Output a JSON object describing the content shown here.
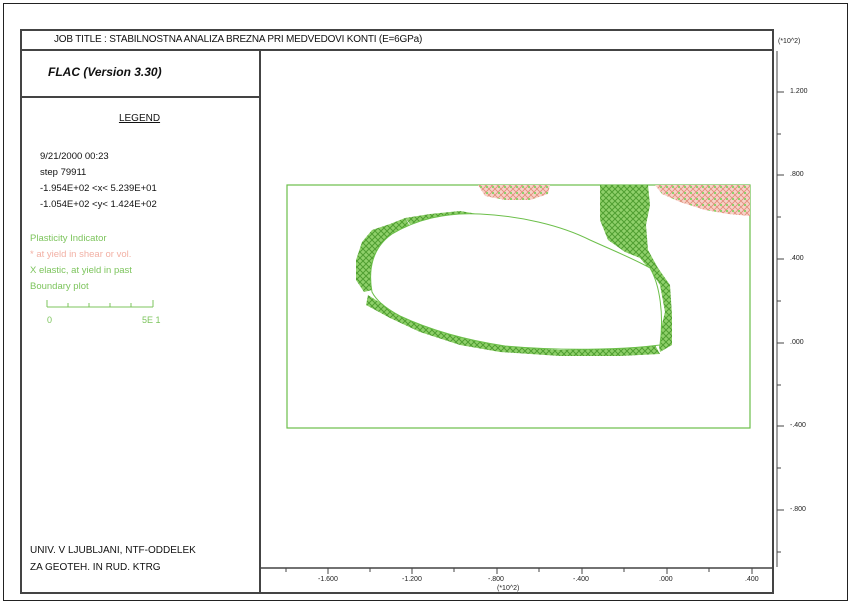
{
  "job_title": "JOB TITLE : STABILNOSTNA ANALIZA BREZNA PRI MEDVEDOVI KONTI (E=6GPa)",
  "program": "FLAC (Version 3.30)",
  "legend": {
    "title": "LEGEND",
    "date": "9/21/2000 00:23",
    "step": "step 79911",
    "x_range": "-1.954E+02 <x< 5.239E+01",
    "y_range": "-1.054E+02 <y< 1.424E+02",
    "items": [
      {
        "label": "Plasticity Indicator",
        "color": "#6cbf4a"
      },
      {
        "label": "* at yield in shear or vol.",
        "color": "#f0a090"
      },
      {
        "label": "X elastic, at yield in past",
        "color": "#6cbf4a"
      },
      {
        "label": "Boundary plot",
        "color": "#6cbf4a"
      }
    ],
    "scale_min": "0",
    "scale_max": "5E 1"
  },
  "organization": [
    "UNIV. V LJUBLJANI, NTF-ODDELEK",
    "ZA GEOTEH. IN RUD. KTRG"
  ],
  "axes": {
    "y_unit": "(*10^2)",
    "x_unit": "(*10^2)",
    "y_ticks": [
      "1.200",
      ".800",
      ".400",
      ".000",
      "-.400",
      "-.800"
    ],
    "x_ticks": [
      "-1.600",
      "-1.200",
      "-.800",
      "-.400",
      ".000",
      ".400"
    ]
  },
  "colors": {
    "elastic_past": "#6cbf4a",
    "yield_now": "#e8a090",
    "boundary": "#6cbf4a",
    "frame": "#444444"
  }
}
